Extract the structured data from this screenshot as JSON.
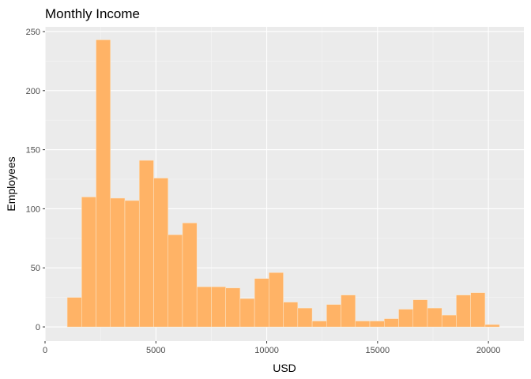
{
  "chart_data": {
    "type": "bar",
    "title": "Monthly Income",
    "xlabel": "USD",
    "ylabel": "Employees",
    "xlim": [
      0,
      21600
    ],
    "ylim": [
      -12,
      254
    ],
    "x_ticks": [
      0,
      5000,
      10000,
      15000,
      20000
    ],
    "x_tick_labels": [
      "0",
      "5000",
      "10000",
      "15000",
      "20000"
    ],
    "y_ticks": [
      0,
      50,
      100,
      150,
      200,
      250
    ],
    "y_tick_labels": [
      "0",
      "50",
      "100",
      "150",
      "200",
      "250"
    ],
    "bin_width": 650,
    "bins": [
      {
        "start": 1000,
        "end": 1650,
        "count": 25
      },
      {
        "start": 1650,
        "end": 2300,
        "count": 110
      },
      {
        "start": 2300,
        "end": 2950,
        "count": 243
      },
      {
        "start": 2950,
        "end": 3600,
        "count": 109
      },
      {
        "start": 3600,
        "end": 4250,
        "count": 107
      },
      {
        "start": 4250,
        "end": 4900,
        "count": 141
      },
      {
        "start": 4900,
        "end": 5550,
        "count": 126
      },
      {
        "start": 5550,
        "end": 6200,
        "count": 78
      },
      {
        "start": 6200,
        "end": 6850,
        "count": 88
      },
      {
        "start": 6850,
        "end": 7500,
        "count": 34
      },
      {
        "start": 7500,
        "end": 8150,
        "count": 34
      },
      {
        "start": 8150,
        "end": 8800,
        "count": 33
      },
      {
        "start": 8800,
        "end": 9450,
        "count": 24
      },
      {
        "start": 9450,
        "end": 10100,
        "count": 41
      },
      {
        "start": 10100,
        "end": 10750,
        "count": 46
      },
      {
        "start": 10750,
        "end": 11400,
        "count": 21
      },
      {
        "start": 11400,
        "end": 12050,
        "count": 16
      },
      {
        "start": 12050,
        "end": 12700,
        "count": 5
      },
      {
        "start": 12700,
        "end": 13350,
        "count": 19
      },
      {
        "start": 13350,
        "end": 14000,
        "count": 27
      },
      {
        "start": 14000,
        "end": 14650,
        "count": 5
      },
      {
        "start": 14650,
        "end": 15300,
        "count": 5
      },
      {
        "start": 15300,
        "end": 15950,
        "count": 7
      },
      {
        "start": 15950,
        "end": 16600,
        "count": 15
      },
      {
        "start": 16600,
        "end": 17250,
        "count": 23
      },
      {
        "start": 17250,
        "end": 17900,
        "count": 16
      },
      {
        "start": 17900,
        "end": 18550,
        "count": 10
      },
      {
        "start": 18550,
        "end": 19200,
        "count": 27
      },
      {
        "start": 19200,
        "end": 19850,
        "count": 29
      },
      {
        "start": 19850,
        "end": 20500,
        "count": 2
      }
    ],
    "grid": true,
    "colors": {
      "panel_background": "#ebebeb",
      "grid_major": "#ffffff",
      "grid_minor": "#f5f5f5",
      "bar_fill": "#ffb366",
      "bar_outline": "#fbe9d0",
      "tick_mark": "#333333"
    }
  }
}
